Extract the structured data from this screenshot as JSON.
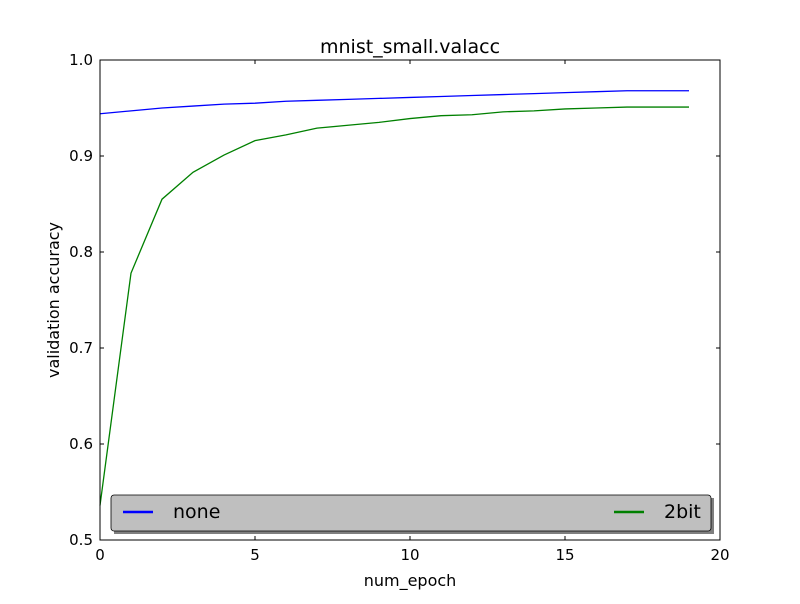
{
  "chart_data": {
    "type": "line",
    "title": "mnist_small.valacc",
    "xlabel": "num_epoch",
    "ylabel": "validation accuracy",
    "xlim": [
      0,
      20
    ],
    "ylim": [
      0.5,
      1.0
    ],
    "xticks": [
      "0",
      "5",
      "10",
      "15",
      "20"
    ],
    "xtick_values": [
      0,
      5,
      10,
      15,
      20
    ],
    "yticks": [
      "0.5",
      "0.6",
      "0.7",
      "0.8",
      "0.9",
      "1.0"
    ],
    "ytick_values": [
      0.5,
      0.6,
      0.7,
      0.8,
      0.9,
      1.0
    ],
    "grid": false,
    "legend_placement": "bottom, expanded across axes",
    "x": [
      0,
      1,
      2,
      3,
      4,
      5,
      6,
      7,
      8,
      9,
      10,
      11,
      12,
      13,
      14,
      15,
      16,
      17,
      18,
      19
    ],
    "series": [
      {
        "name": "none",
        "color": "#0000ff",
        "values": [
          0.944,
          0.947,
          0.95,
          0.952,
          0.954,
          0.955,
          0.957,
          0.958,
          0.959,
          0.96,
          0.961,
          0.962,
          0.963,
          0.964,
          0.965,
          0.966,
          0.967,
          0.968,
          0.968,
          0.968
        ]
      },
      {
        "name": "2bit",
        "color": "#008000",
        "values": [
          0.536,
          0.778,
          0.855,
          0.883,
          0.901,
          0.916,
          0.922,
          0.929,
          0.932,
          0.935,
          0.939,
          0.942,
          0.943,
          0.946,
          0.947,
          0.949,
          0.95,
          0.951,
          0.951,
          0.951
        ]
      }
    ]
  }
}
